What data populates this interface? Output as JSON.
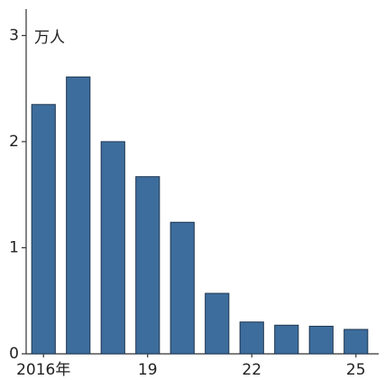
{
  "chart_data": {
    "type": "bar",
    "unit_label": "万人",
    "categories": [
      "2016年",
      null,
      null,
      "19",
      null,
      null,
      "22",
      null,
      null,
      "25"
    ],
    "values": [
      2.35,
      2.61,
      2.0,
      1.67,
      1.24,
      0.57,
      0.3,
      0.27,
      0.26,
      0.23
    ],
    "color": "#3d6d9c",
    "ylim": [
      0,
      3.25
    ],
    "yticks": [
      0,
      1,
      2,
      3
    ]
  }
}
